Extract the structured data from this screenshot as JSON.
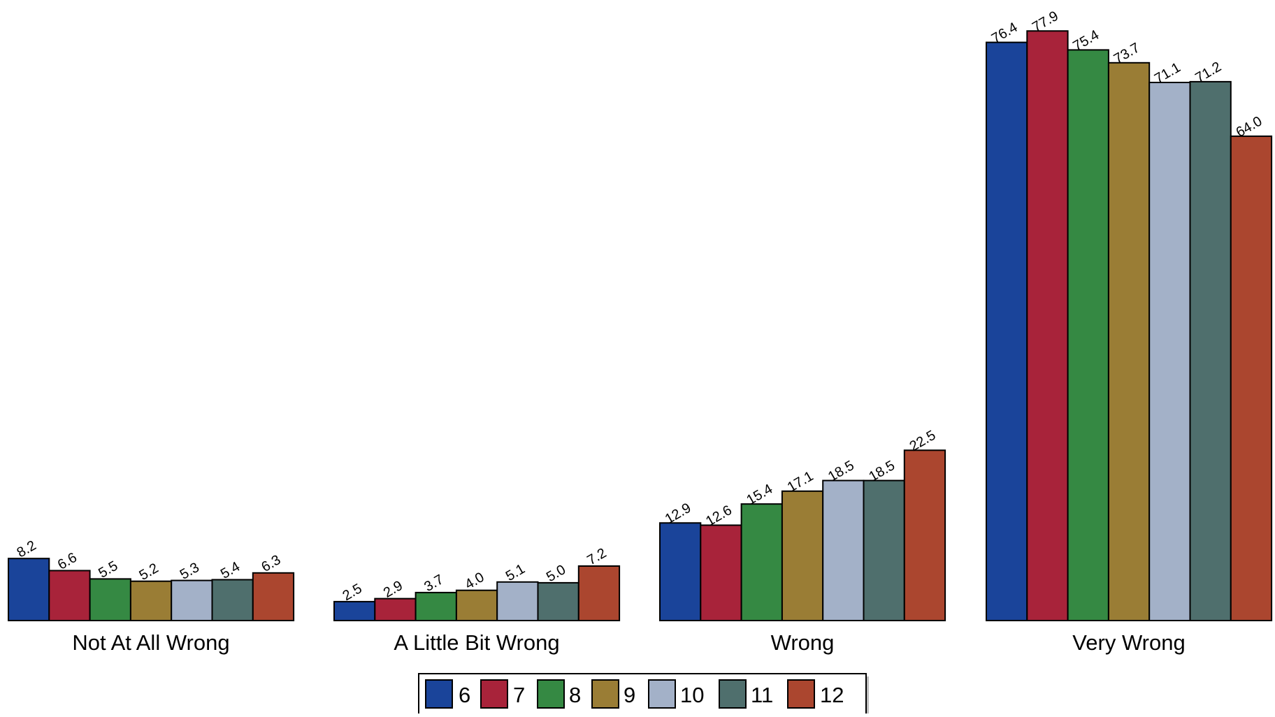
{
  "chart_data": {
    "type": "bar",
    "title": "",
    "xlabel": "",
    "ylabel": "",
    "ylim": [
      0,
      80
    ],
    "grid": false,
    "legend_position": "bottom-center",
    "categories": [
      "Not At All Wrong",
      "A Little Bit Wrong",
      "Wrong",
      "Very Wrong"
    ],
    "series": [
      {
        "name": "6",
        "color": "#1a449a",
        "values": [
          8.2,
          2.5,
          12.9,
          76.4
        ],
        "labels": [
          "8.2",
          "2.5",
          "12.9",
          "76.4"
        ]
      },
      {
        "name": "7",
        "color": "#a8233a",
        "values": [
          6.6,
          2.9,
          12.6,
          77.9
        ],
        "labels": [
          "6.6",
          "2.9",
          "12.6",
          "77.9"
        ]
      },
      {
        "name": "8",
        "color": "#358943",
        "values": [
          5.5,
          3.7,
          15.4,
          75.4
        ],
        "labels": [
          "5.5",
          "3.7",
          "15.4",
          "75.4"
        ]
      },
      {
        "name": "9",
        "color": "#9a7d35",
        "values": [
          5.2,
          4.0,
          17.1,
          73.7
        ],
        "labels": [
          "5.2",
          "4.0",
          "17.1",
          "73.7"
        ]
      },
      {
        "name": "10",
        "color": "#a3b1c8",
        "values": [
          5.3,
          5.1,
          18.5,
          71.1
        ],
        "labels": [
          "5.3",
          "5.1",
          "18.5",
          "71.1"
        ]
      },
      {
        "name": "11",
        "color": "#4f6f6d",
        "values": [
          5.4,
          5.0,
          18.5,
          71.2
        ],
        "labels": [
          "5.4",
          "5.0",
          "18.5",
          "71.2"
        ]
      },
      {
        "name": "12",
        "color": "#ab462f",
        "values": [
          6.3,
          7.2,
          22.5,
          64.0
        ],
        "labels": [
          "6.3",
          "7.2",
          "22.5",
          "64.0"
        ]
      }
    ]
  }
}
